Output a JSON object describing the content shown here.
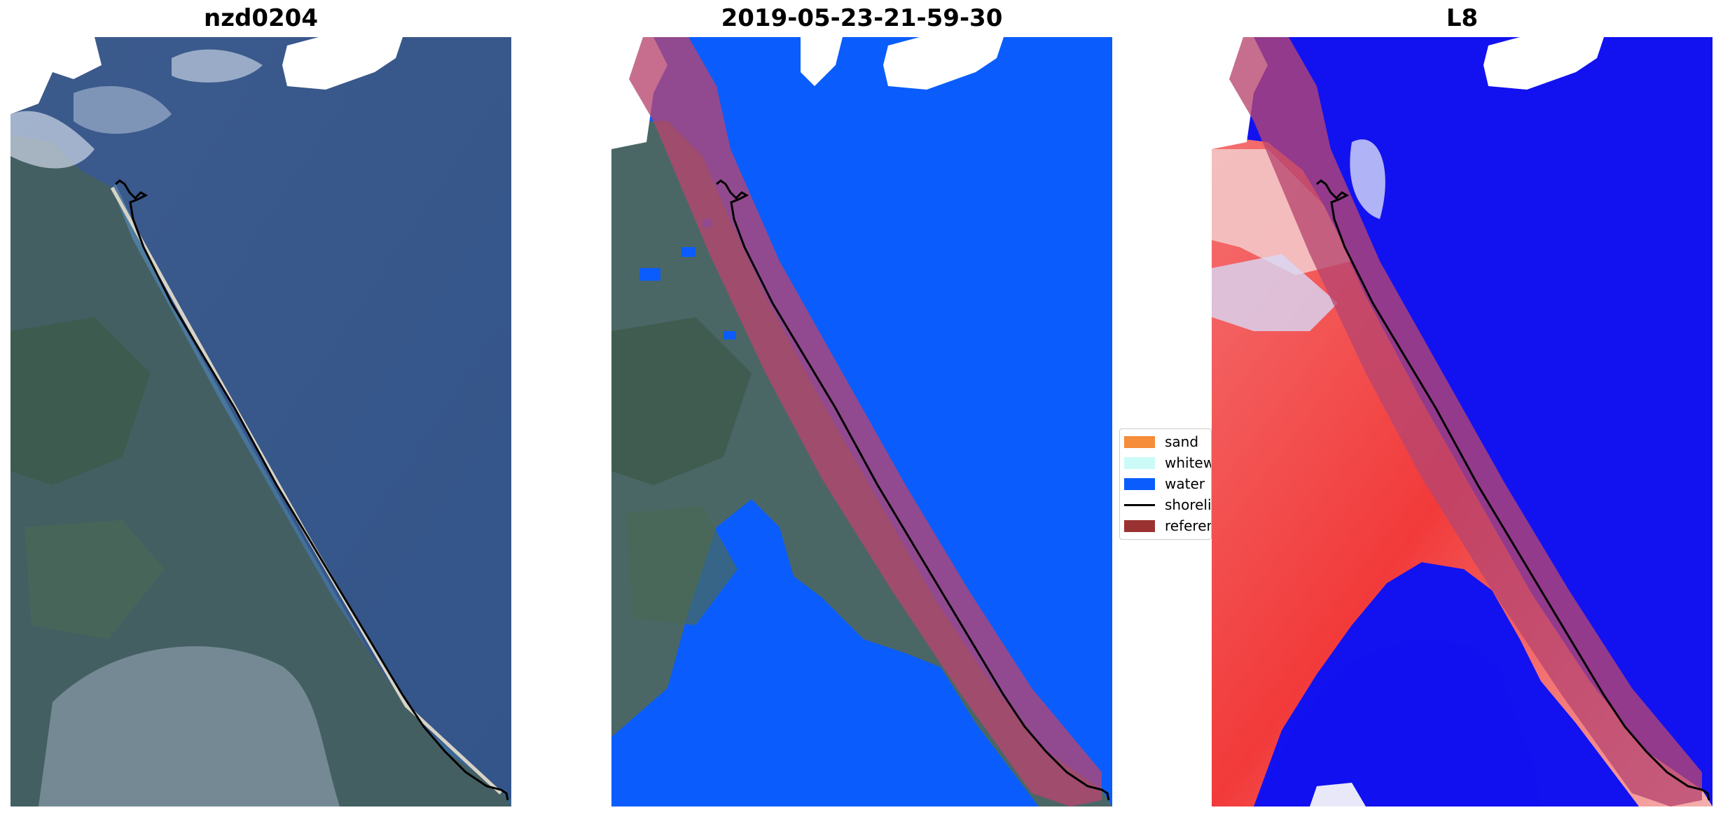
{
  "panels": [
    {
      "title": "nzd0204"
    },
    {
      "title": "2019-05-23-21-59-30"
    },
    {
      "title": "L8"
    }
  ],
  "legend": {
    "items": [
      {
        "label": "sand",
        "color": "#f58d3a"
      },
      {
        "label": "whitewater",
        "color": "#ccfbf7"
      },
      {
        "label": "water",
        "color": "#0a5dfc"
      },
      {
        "label": "shoreline",
        "color": "#000000"
      },
      {
        "label": "reference",
        "color": "#9b3232"
      }
    ]
  },
  "colors": {
    "ocean_rgb": "#33568b",
    "shallow_water": "#4f86a5",
    "land": "#3f5d66",
    "cloud": "#ffffff",
    "water_class": "#0a5dfc",
    "reference_buffer": "#b7456f",
    "index_water": "#1111f2",
    "index_land": "#f24444",
    "shoreline": "#000000"
  },
  "icons": {
    "legend_line": "shoreline-line-icon"
  }
}
